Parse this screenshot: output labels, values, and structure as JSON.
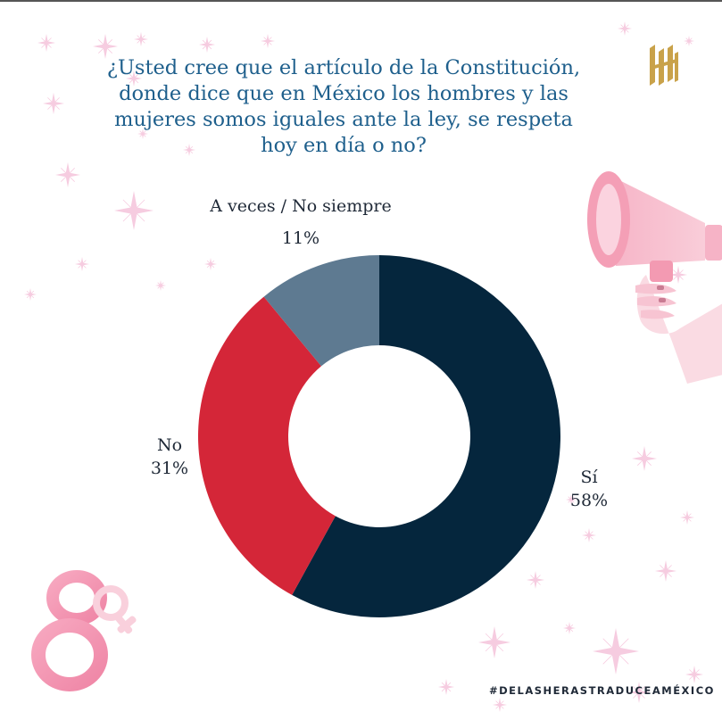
{
  "title_lines": [
    "¿Usted cree que el artículo de la Constitución,",
    "donde dice que en México los hombres y las",
    "mujeres somos iguales ante la ley, se respeta",
    "hoy en día o no?"
  ],
  "chart_data": {
    "type": "pie",
    "donut": true,
    "slices": [
      {
        "label": "Sí",
        "value": 58,
        "value_text": "58%",
        "color": "#05263d"
      },
      {
        "label": "No",
        "value": 31,
        "value_text": "31%",
        "color": "#d42638"
      },
      {
        "label": "A veces / No siempre",
        "value": 11,
        "value_text": "11%",
        "color": "#5e7a91"
      }
    ]
  },
  "hashtag": "#DELASHERASTRADUCEAMÉXICO",
  "colors": {
    "title": "#1e5f8c",
    "sparkle": "#f3bcd6",
    "accent_pink": "#f1a0b8",
    "logo_gold": "#c9a24a"
  },
  "icons": [
    "sparkle-icon",
    "megaphone-icon",
    "hand-icon",
    "number-eight-icon",
    "female-symbol-icon",
    "logo-icon"
  ]
}
